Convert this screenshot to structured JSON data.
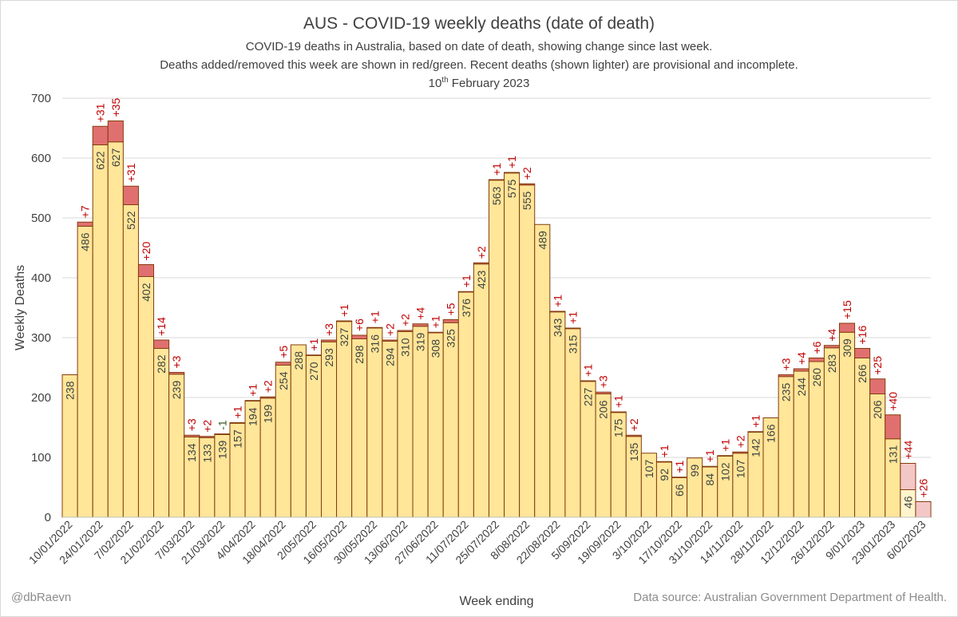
{
  "title": "AUS - COVID-19 weekly deaths (date of death)",
  "subtitle_1": "COVID-19 deaths in Australia, based on date of death, showing change since last week.",
  "subtitle_2": "Deaths added/removed this week are shown in red/green. Recent deaths (shown lighter) are provisional and incomplete.",
  "date_day": "10",
  "date_sup": "th",
  "date_rest": " February 2023",
  "credit": "@dbRaevn",
  "source": "Data source: Australian Government Department of Health.",
  "colors": {
    "bar": "#ffe699",
    "bar_provisional": "#fff5cc",
    "added": "#e07070",
    "added_provisional": "#f4c7c7",
    "removed": "#70ad47",
    "outline": "#843c0c",
    "label": "#404040",
    "delta_text": "#c00000",
    "delta_neg_text": "#375623",
    "grid": "#d9d9d9"
  },
  "chart_data": {
    "type": "bar",
    "stacked": true,
    "xlabel": "Week ending",
    "ylabel": "Weekly Deaths",
    "ylim": [
      0,
      700
    ],
    "yticks": [
      0,
      100,
      200,
      300,
      400,
      500,
      600,
      700
    ],
    "grid": true,
    "categories": [
      "10/01/2022",
      "17/01/2022",
      "24/01/2022",
      "31/01/2022",
      "7/02/2022",
      "14/02/2022",
      "21/02/2022",
      "28/02/2022",
      "7/03/2022",
      "14/03/2022",
      "21/03/2022",
      "28/03/2022",
      "4/04/2022",
      "11/04/2022",
      "18/04/2022",
      "25/04/2022",
      "2/05/2022",
      "9/05/2022",
      "16/05/2022",
      "23/05/2022",
      "30/05/2022",
      "6/06/2022",
      "13/06/2022",
      "20/06/2022",
      "27/06/2022",
      "4/07/2022",
      "11/07/2022",
      "18/07/2022",
      "25/07/2022",
      "1/08/2022",
      "8/08/2022",
      "15/08/2022",
      "22/08/2022",
      "29/08/2022",
      "5/09/2022",
      "12/09/2022",
      "19/09/2022",
      "26/09/2022",
      "3/10/2022",
      "10/10/2022",
      "17/10/2022",
      "24/10/2022",
      "31/10/2022",
      "7/11/2022",
      "14/11/2022",
      "21/11/2022",
      "28/11/2022",
      "5/12/2022",
      "12/12/2022",
      "19/12/2022",
      "26/12/2022",
      "2/01/2023",
      "9/01/2023",
      "16/01/2023",
      "23/01/2023",
      "30/01/2023",
      "6/02/2023"
    ],
    "tick_labels": [
      "10/01/2022",
      "24/01/2022",
      "7/02/2022",
      "21/02/2022",
      "7/03/2022",
      "21/03/2022",
      "4/04/2022",
      "18/04/2022",
      "2/05/2022",
      "16/05/2022",
      "30/05/2022",
      "13/06/2022",
      "27/06/2022",
      "11/07/2022",
      "25/07/2022",
      "8/08/2022",
      "22/08/2022",
      "5/09/2022",
      "19/09/2022",
      "3/10/2022",
      "17/10/2022",
      "31/10/2022",
      "14/11/2022",
      "28/11/2022",
      "12/12/2022",
      "26/12/2022",
      "9/01/2023",
      "23/01/2023",
      "6/02/2023"
    ],
    "series": [
      {
        "name": "Deaths last week",
        "values": [
          238,
          486,
          622,
          627,
          522,
          402,
          282,
          239,
          134,
          133,
          139,
          157,
          194,
          199,
          254,
          288,
          270,
          293,
          327,
          298,
          316,
          294,
          310,
          319,
          308,
          325,
          376,
          423,
          563,
          575,
          555,
          489,
          343,
          315,
          227,
          206,
          175,
          135,
          107,
          92,
          66,
          99,
          84,
          102,
          107,
          142,
          166,
          235,
          244,
          260,
          283,
          309,
          266,
          206,
          131,
          46,
          0
        ]
      },
      {
        "name": "Change this week",
        "values": [
          0,
          7,
          31,
          35,
          31,
          20,
          14,
          3,
          3,
          2,
          -1,
          1,
          1,
          2,
          5,
          0,
          1,
          3,
          1,
          6,
          1,
          2,
          2,
          4,
          1,
          5,
          1,
          2,
          1,
          1,
          2,
          0,
          1,
          1,
          1,
          3,
          1,
          2,
          0,
          1,
          1,
          0,
          1,
          1,
          2,
          1,
          0,
          3,
          4,
          6,
          4,
          15,
          16,
          25,
          40,
          44,
          26
        ]
      }
    ],
    "provisional_from_index": 55
  }
}
